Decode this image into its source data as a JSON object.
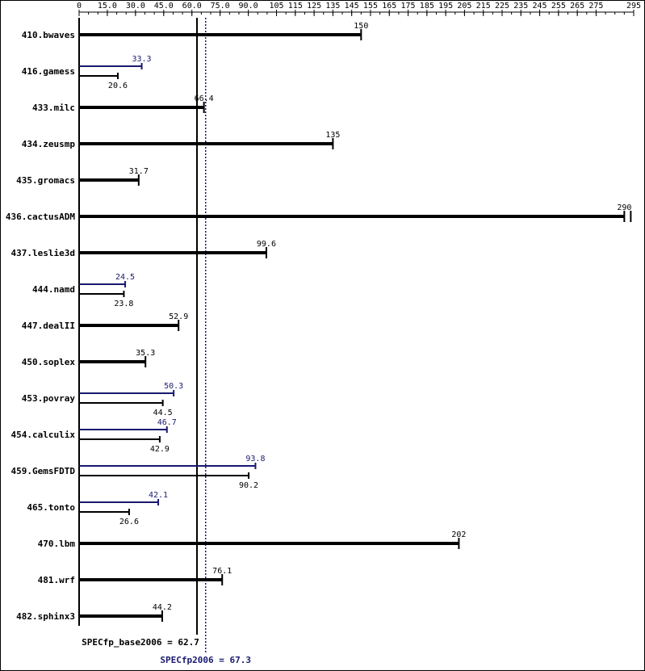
{
  "colors": {
    "base": "#000000",
    "peak": "#191970",
    "background": "#ffffff"
  },
  "chart_data": {
    "type": "bar",
    "orientation": "horizontal",
    "grid": false,
    "xlim": [
      0,
      295
    ],
    "xticks": [
      0,
      15,
      30,
      45,
      60,
      75,
      90,
      105,
      115,
      125,
      135,
      145,
      155,
      165,
      175,
      185,
      195,
      205,
      215,
      225,
      235,
      245,
      255,
      265,
      275,
      295
    ],
    "xtick_labels": [
      "0",
      "15.0",
      "30.0",
      "45.0",
      "60.0",
      "75.0",
      "90.0",
      "105",
      "115",
      "125",
      "135",
      "145",
      "155",
      "165",
      "175",
      "185",
      "195",
      "205",
      "215",
      "225",
      "235",
      "245",
      "255",
      "265",
      "275",
      "295"
    ],
    "categories": [
      "410.bwaves",
      "416.gamess",
      "433.milc",
      "434.zeusmp",
      "435.gromacs",
      "436.cactusADM",
      "437.leslie3d",
      "444.namd",
      "447.dealII",
      "450.soplex",
      "453.povray",
      "454.calculix",
      "459.GemsFDTD",
      "465.tonto",
      "470.lbm",
      "481.wrf",
      "482.sphinx3"
    ],
    "series": [
      {
        "key": "base",
        "values": [
          150,
          20.6,
          66.4,
          135,
          31.7,
          290,
          99.6,
          23.8,
          52.9,
          35.3,
          44.5,
          42.9,
          90.2,
          26.6,
          202,
          76.1,
          44.2
        ],
        "labels": [
          "150",
          "20.6",
          "66.4",
          "135",
          "31.7",
          "290",
          "99.6",
          "23.8",
          "52.9",
          "35.3",
          "44.5",
          "42.9",
          "90.2",
          "26.6",
          "202",
          "76.1",
          "44.2"
        ]
      },
      {
        "key": "peak",
        "values": [
          null,
          33.3,
          null,
          null,
          null,
          null,
          null,
          24.5,
          null,
          null,
          50.3,
          46.7,
          93.8,
          42.1,
          null,
          null,
          null
        ],
        "labels": [
          null,
          "33.3",
          null,
          null,
          null,
          null,
          null,
          "24.5",
          null,
          null,
          "50.3",
          "46.7",
          "93.8",
          "42.1",
          null,
          null,
          null
        ]
      }
    ],
    "reference_lines": [
      {
        "key": "base",
        "value": 62.7,
        "label": "SPECfp_base2006 = 62.7",
        "style": "solid"
      },
      {
        "key": "peak",
        "value": 67.3,
        "label": "SPECfp2006 = 67.3",
        "style": "dotted"
      }
    ]
  }
}
